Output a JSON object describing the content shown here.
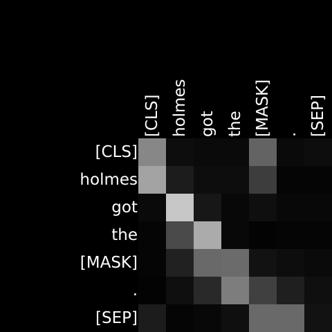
{
  "chart_data": {
    "type": "heatmap",
    "title": "",
    "xlabel": "",
    "ylabel": "",
    "x_tokens": [
      "[CLS]",
      "holmes",
      "got",
      "the",
      "[MASK]",
      ".",
      "[SEP]"
    ],
    "y_tokens": [
      "[CLS]",
      "holmes",
      "got",
      "the",
      "[MASK]",
      ".",
      "[SEP]"
    ],
    "colormap": "grayscale",
    "background": "#000000",
    "label_color": "#ffffff",
    "x_tick_rotation": -90,
    "grid": false,
    "values": [
      [
        0.53,
        0.05,
        0.04,
        0.04,
        0.39,
        0.04,
        0.05
      ],
      [
        0.64,
        0.11,
        0.05,
        0.05,
        0.24,
        0.02,
        0.02
      ],
      [
        0.04,
        0.78,
        0.09,
        0.03,
        0.06,
        0.03,
        0.03
      ],
      [
        0.02,
        0.29,
        0.67,
        0.03,
        0.01,
        0.02,
        0.02
      ],
      [
        0.02,
        0.13,
        0.41,
        0.42,
        0.07,
        0.05,
        0.04
      ],
      [
        0.01,
        0.06,
        0.16,
        0.49,
        0.25,
        0.12,
        0.06
      ],
      [
        0.11,
        0.02,
        0.03,
        0.06,
        0.41,
        0.41,
        0.07
      ]
    ]
  }
}
